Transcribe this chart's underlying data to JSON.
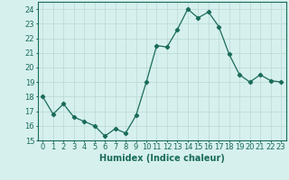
{
  "x": [
    0,
    1,
    2,
    3,
    4,
    5,
    6,
    7,
    8,
    9,
    10,
    11,
    12,
    13,
    14,
    15,
    16,
    17,
    18,
    19,
    20,
    21,
    22,
    23
  ],
  "y": [
    18.0,
    16.8,
    17.5,
    16.6,
    16.3,
    16.0,
    15.3,
    15.8,
    15.5,
    16.7,
    19.0,
    21.5,
    21.4,
    22.6,
    24.0,
    23.4,
    23.8,
    22.8,
    20.9,
    19.5,
    19.0,
    19.5,
    19.1,
    19.0
  ],
  "line_color": "#1a6b5a",
  "marker": "D",
  "markersize": 2.2,
  "bg_color": "#d6f0ee",
  "grid_color": "#b8d8d4",
  "xlabel": "Humidex (Indice chaleur)",
  "ylim": [
    15,
    24.5
  ],
  "yticks": [
    15,
    16,
    17,
    18,
    19,
    20,
    21,
    22,
    23,
    24
  ],
  "xticks": [
    0,
    1,
    2,
    3,
    4,
    5,
    6,
    7,
    8,
    9,
    10,
    11,
    12,
    13,
    14,
    15,
    16,
    17,
    18,
    19,
    20,
    21,
    22,
    23
  ],
  "xlabel_fontsize": 7,
  "tick_fontsize": 6,
  "linewidth": 0.9
}
